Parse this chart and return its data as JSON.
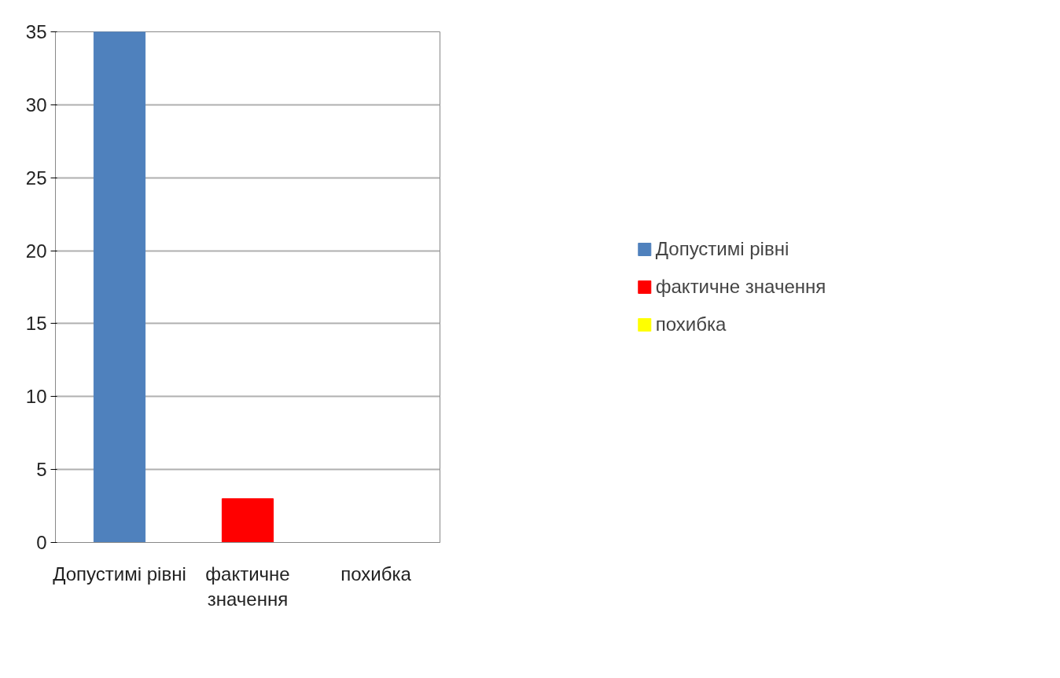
{
  "chart_data": {
    "type": "bar",
    "categories": [
      "Допустимі рівні",
      "фактичне значення",
      "похибка"
    ],
    "series": [
      {
        "name": "Допустимі рівні",
        "color": "#4f81bd",
        "values": [
          35,
          null,
          null
        ]
      },
      {
        "name": "фактичне значення",
        "color": "#ff0000",
        "values": [
          null,
          3,
          null
        ]
      },
      {
        "name": "похибка",
        "color": "#ffff00",
        "values": [
          null,
          null,
          0
        ]
      }
    ],
    "ylim": [
      0,
      35
    ],
    "yticks": [
      0,
      5,
      10,
      15,
      20,
      25,
      30,
      35
    ],
    "grid": "y",
    "legend": "right"
  }
}
